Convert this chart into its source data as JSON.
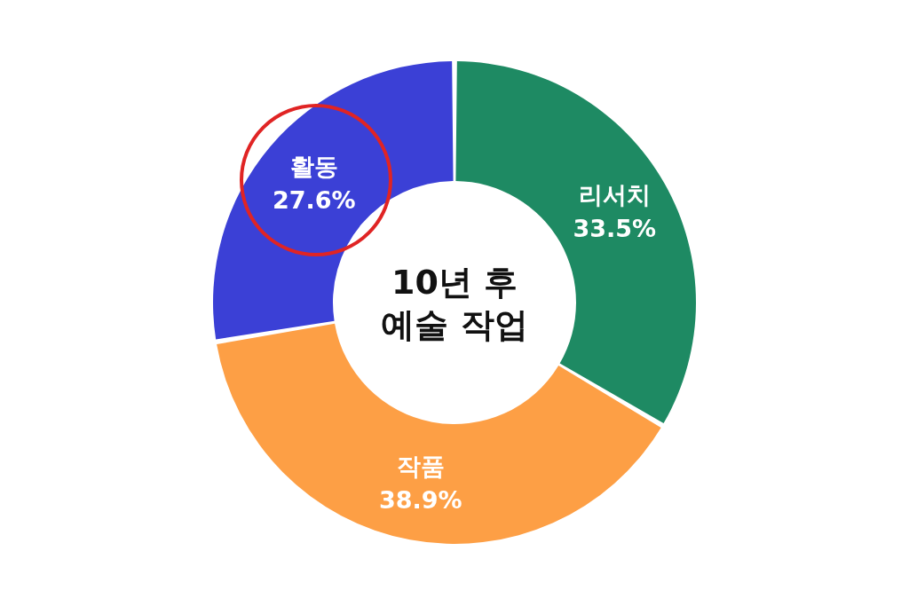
{
  "chart_data": {
    "type": "donut",
    "title": "10년 후\n예술 작업",
    "categories": [
      "리서치",
      "작품",
      "활동"
    ],
    "values": [
      33.5,
      38.9,
      27.6
    ],
    "colors": [
      "#1e8a63",
      "#fd9f45",
      "#3b40d6"
    ],
    "value_labels": [
      "33.5%",
      "38.9%",
      "27.6%"
    ],
    "legend": false
  }
}
